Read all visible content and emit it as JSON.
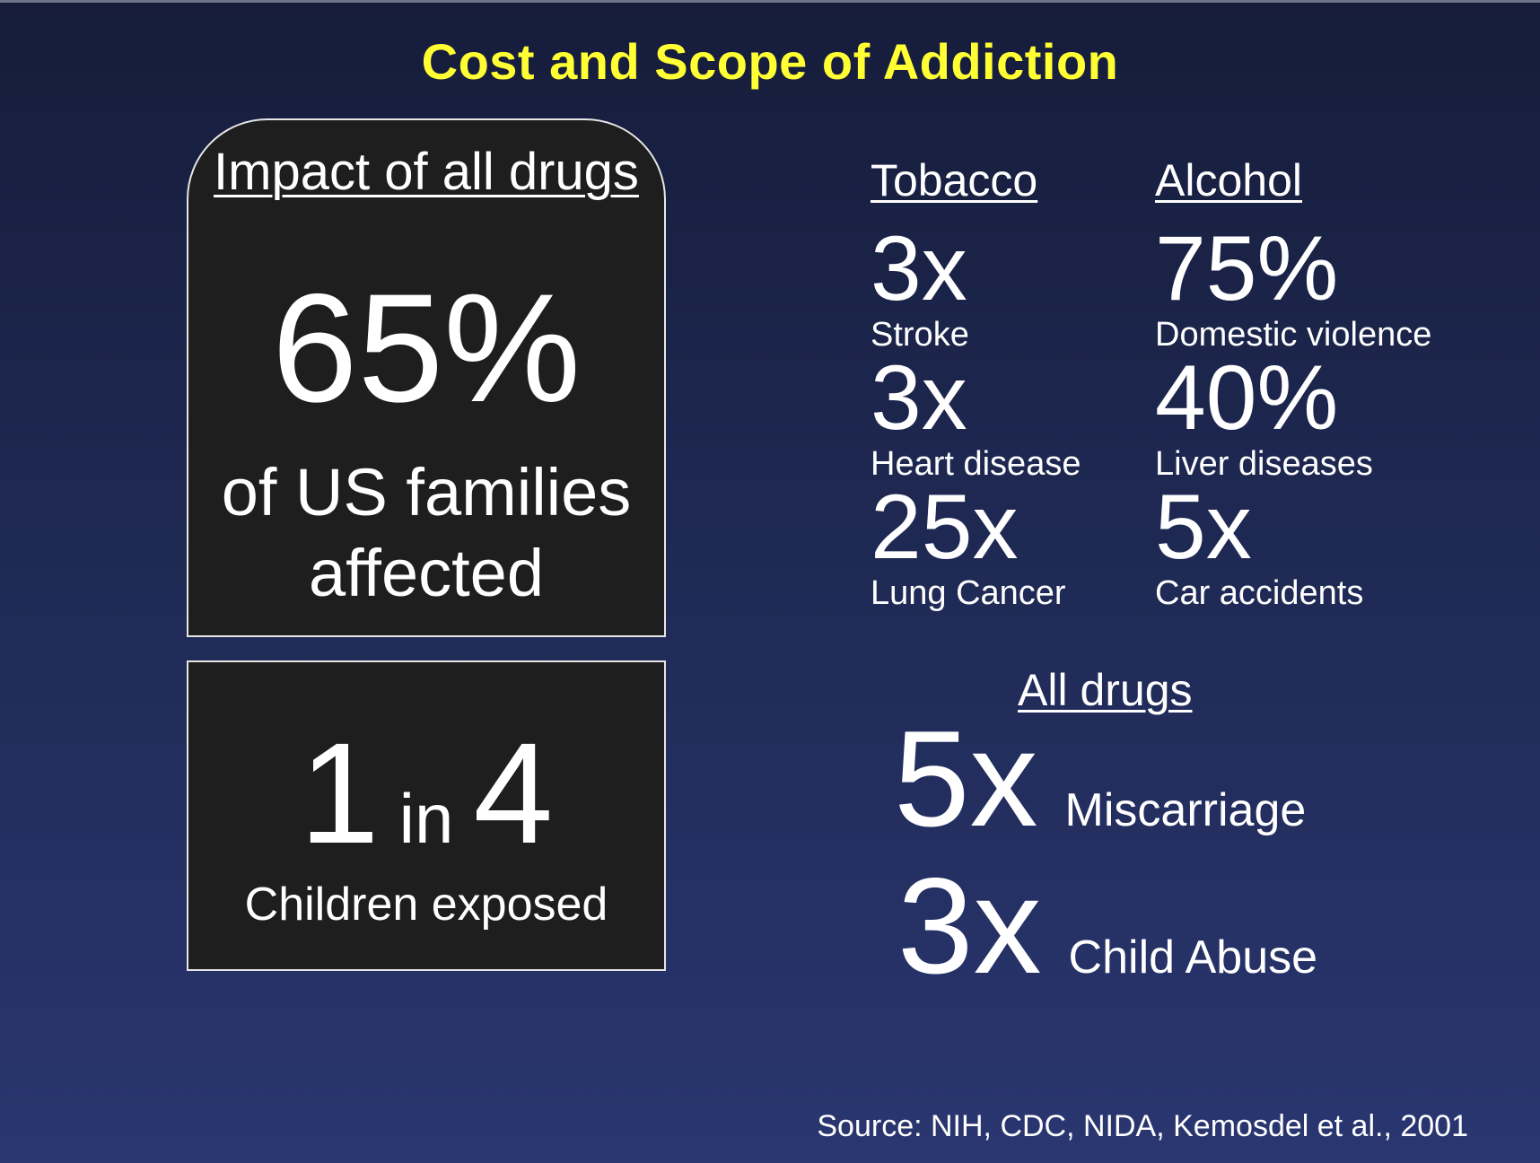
{
  "title": "Cost and Scope of Addiction",
  "impact_panel": {
    "heading": "Impact of all drugs",
    "value": "65%",
    "description_line1": "of US families",
    "description_line2": "affected"
  },
  "children_panel": {
    "left_number": "1",
    "connector": "in",
    "right_number": "4",
    "description": "Children exposed"
  },
  "tobacco": {
    "heading": "Tobacco",
    "stats": [
      {
        "value": "3x",
        "label": "Stroke"
      },
      {
        "value": "3x",
        "label": "Heart disease"
      },
      {
        "value": "25x",
        "label": "Lung Cancer"
      }
    ]
  },
  "alcohol": {
    "heading": "Alcohol",
    "stats": [
      {
        "value": "75%",
        "label": "Domestic violence"
      },
      {
        "value": "40%",
        "label": "Liver diseases"
      },
      {
        "value": "5x",
        "label": "Car accidents"
      }
    ]
  },
  "all_drugs": {
    "heading": "All drugs",
    "stats": [
      {
        "value": "5x",
        "label": "Miscarriage"
      },
      {
        "value": "3x",
        "label": "Child Abuse"
      }
    ]
  },
  "source": "Source: NIH, CDC, NIDA, Kemosdel et al., 2001",
  "colors": {
    "title": "#ffff33",
    "panel_background": "#1e1e1e",
    "text": "#ffffff"
  }
}
